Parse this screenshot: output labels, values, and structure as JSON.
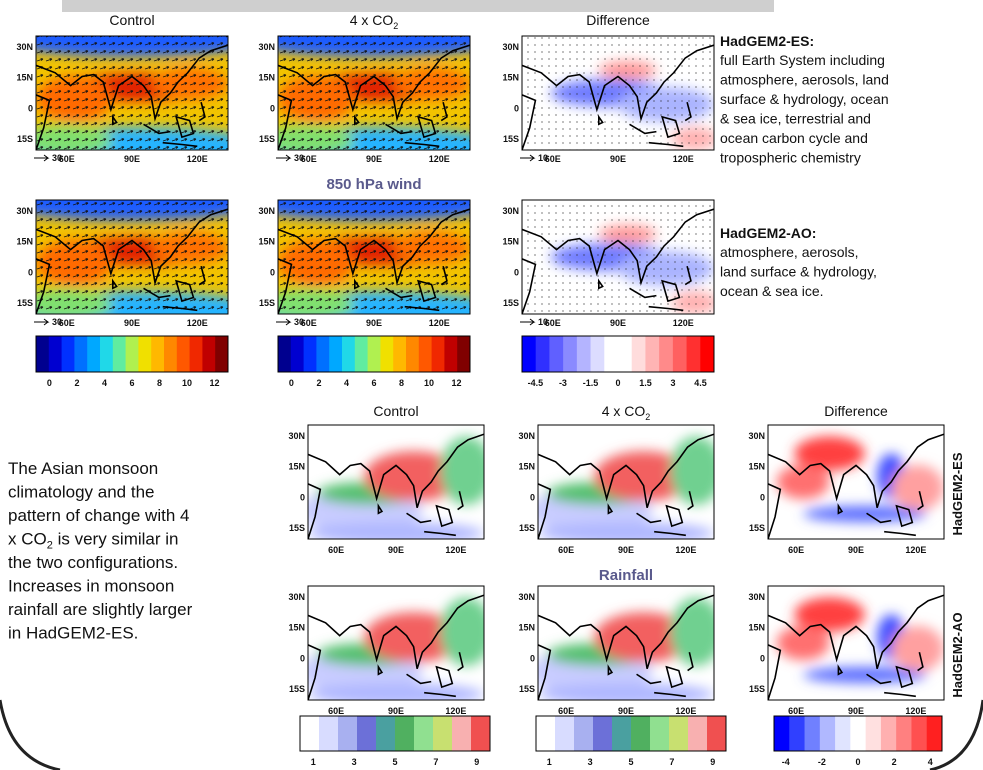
{
  "wind": {
    "titles": {
      "control": "Control",
      "co2": {
        "text": "4 x CO",
        "sub": "2"
      },
      "difference": "Difference"
    },
    "caption": "850 hPa wind",
    "lat_labels": [
      "30N",
      "15N",
      "0",
      "15S"
    ],
    "lon_labels": [
      "60E",
      "90E",
      "120E"
    ],
    "vector_refs": {
      "main": "30",
      "difference": "10"
    },
    "colorbars": {
      "absolute": [
        0,
        2,
        4,
        6,
        8,
        10,
        12
      ],
      "difference": [
        -4.5,
        -3,
        -1.5,
        0,
        1.5,
        3,
        4.5
      ]
    }
  },
  "models": [
    {
      "name": "HadGEM2-ES:",
      "lines": [
        "full Earth System including",
        "atmosphere, aerosols, land",
        "surface & hydrology, ocean",
        "& sea ice, terrestrial and",
        "ocean carbon cycle and",
        "tropospheric chemistry"
      ]
    },
    {
      "name": "HadGEM2-AO:",
      "lines": [
        "atmosphere, aerosols,",
        "land surface & hydrology,",
        "ocean & sea ice."
      ]
    }
  ],
  "rain": {
    "titles": {
      "control": "Control",
      "co2": {
        "text": "4 x CO",
        "sub": "2"
      },
      "difference": "Difference"
    },
    "caption": "Rainfall",
    "row_labels": [
      "HadGEM2-ES",
      "HadGEM2-AO"
    ],
    "colorbars": {
      "absolute": [
        1,
        3,
        5,
        7,
        9
      ],
      "difference": [
        -4,
        -2,
        0,
        2,
        4
      ]
    }
  },
  "summary": [
    "The Asian monsoon",
    "climatology and the",
    "pattern of change with 4",
    {
      "before": "x CO",
      "sub": "2",
      "after": " is very similar in"
    },
    "the two configurations.",
    "Increases in monsoon",
    "rainfall are slightly larger",
    "in HadGEM2-ES."
  ]
}
